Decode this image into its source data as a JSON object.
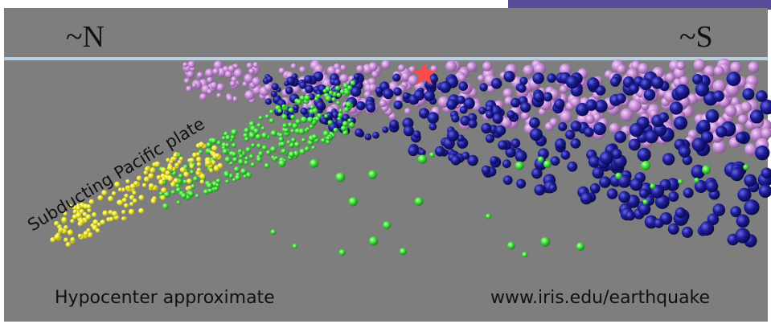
{
  "labels": {
    "north": "~N",
    "south": "~S",
    "plate": "Subducting Pacific plate",
    "caption_left": "Hypocenter approximate",
    "caption_right": "www.iris.edu/earthquake"
  }
}
